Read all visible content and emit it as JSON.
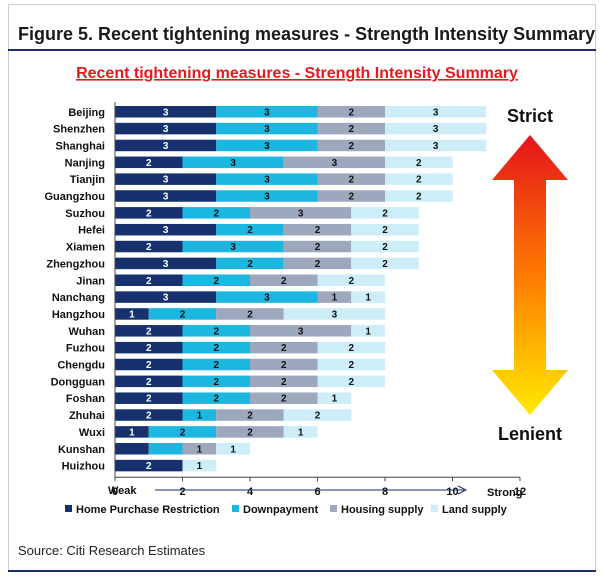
{
  "figure_caption": "Figure 5. Recent tightening measures - Strength Intensity Summary",
  "source": "Source: Citi Research Estimates",
  "colors": {
    "Home Purchase Restriction": "#17316e",
    "Downpayment": "#1cb7e0",
    "Housing supply": "#9da7bd",
    "Land supply": "#cdeef8",
    "title": "#e31b1b",
    "rule": "#1f2d6b"
  },
  "chart_data": {
    "type": "bar",
    "orientation": "horizontal",
    "stacked": true,
    "title": "Recent tightening measures - Strength Intensity Summary",
    "categories": [
      "Beijing",
      "Shenzhen",
      "Shanghai",
      "Nanjing",
      "Tianjin",
      "Guangzhou",
      "Suzhou",
      "Hefei",
      "Xiamen",
      "Zhengzhou",
      "Jinan",
      "Nanchang",
      "Hangzhou",
      "Wuhan",
      "Fuzhou",
      "Chengdu",
      "Dongguan",
      "Foshan",
      "Zhuhai",
      "Wuxi",
      "Kunshan",
      "Huizhou"
    ],
    "series": [
      {
        "name": "Home Purchase Restriction",
        "values": [
          3,
          3,
          3,
          2,
          3,
          3,
          2,
          3,
          2,
          3,
          2,
          3,
          1,
          2,
          2,
          2,
          2,
          2,
          2,
          1,
          1,
          2
        ]
      },
      {
        "name": "Downpayment",
        "values": [
          3,
          3,
          3,
          3,
          3,
          3,
          2,
          2,
          3,
          2,
          2,
          3,
          2,
          2,
          2,
          2,
          2,
          2,
          1,
          2,
          1,
          0
        ]
      },
      {
        "name": "Housing supply",
        "values": [
          2,
          2,
          2,
          3,
          2,
          2,
          3,
          2,
          2,
          2,
          2,
          1,
          2,
          3,
          2,
          2,
          2,
          2,
          2,
          2,
          1,
          0
        ]
      },
      {
        "name": "Land supply",
        "values": [
          3,
          3,
          3,
          2,
          2,
          2,
          2,
          2,
          2,
          2,
          2,
          1,
          3,
          1,
          2,
          2,
          2,
          1,
          2,
          1,
          1,
          1
        ]
      }
    ],
    "segment_labels": [
      [
        "3",
        "3",
        "2",
        "3"
      ],
      [
        "3",
        "3",
        "2",
        "3"
      ],
      [
        "3",
        "3",
        "2",
        "3"
      ],
      [
        "2",
        "3",
        "3",
        "2"
      ],
      [
        "3",
        "3",
        "2",
        "2"
      ],
      [
        "3",
        "3",
        "2",
        "2"
      ],
      [
        "2",
        "2",
        "3",
        "2"
      ],
      [
        "3",
        "2",
        "2",
        "2"
      ],
      [
        "2",
        "3",
        "2",
        "2"
      ],
      [
        "3",
        "2",
        "2",
        "2"
      ],
      [
        "2",
        "2",
        "2",
        "2"
      ],
      [
        "3",
        "3",
        "1",
        "1"
      ],
      [
        "1",
        "2",
        "2",
        "3"
      ],
      [
        "2",
        "2",
        "3",
        "1"
      ],
      [
        "2",
        "2",
        "2",
        "2"
      ],
      [
        "2",
        "2",
        "2",
        "2"
      ],
      [
        "2",
        "2",
        "2",
        "2"
      ],
      [
        "2",
        "2",
        "2",
        "1"
      ],
      [
        "2",
        "1",
        "2",
        "2"
      ],
      [
        "1",
        "2",
        "2",
        "1"
      ],
      [
        "",
        "",
        "1",
        "1"
      ],
      [
        "2",
        "",
        "",
        "1"
      ]
    ],
    "xlim": [
      0,
      12
    ],
    "xticks": [
      0,
      2,
      4,
      6,
      8,
      10,
      12
    ],
    "xlabel_left": "Weak",
    "xlabel_right": "Strong",
    "side_label_top": "Strict",
    "side_label_bottom": "Lenient",
    "legend": {
      "position": "bottom",
      "entries": [
        "Home Purchase Restriction",
        "Downpayment",
        "Housing supply",
        "Land supply"
      ]
    },
    "grid": false
  }
}
